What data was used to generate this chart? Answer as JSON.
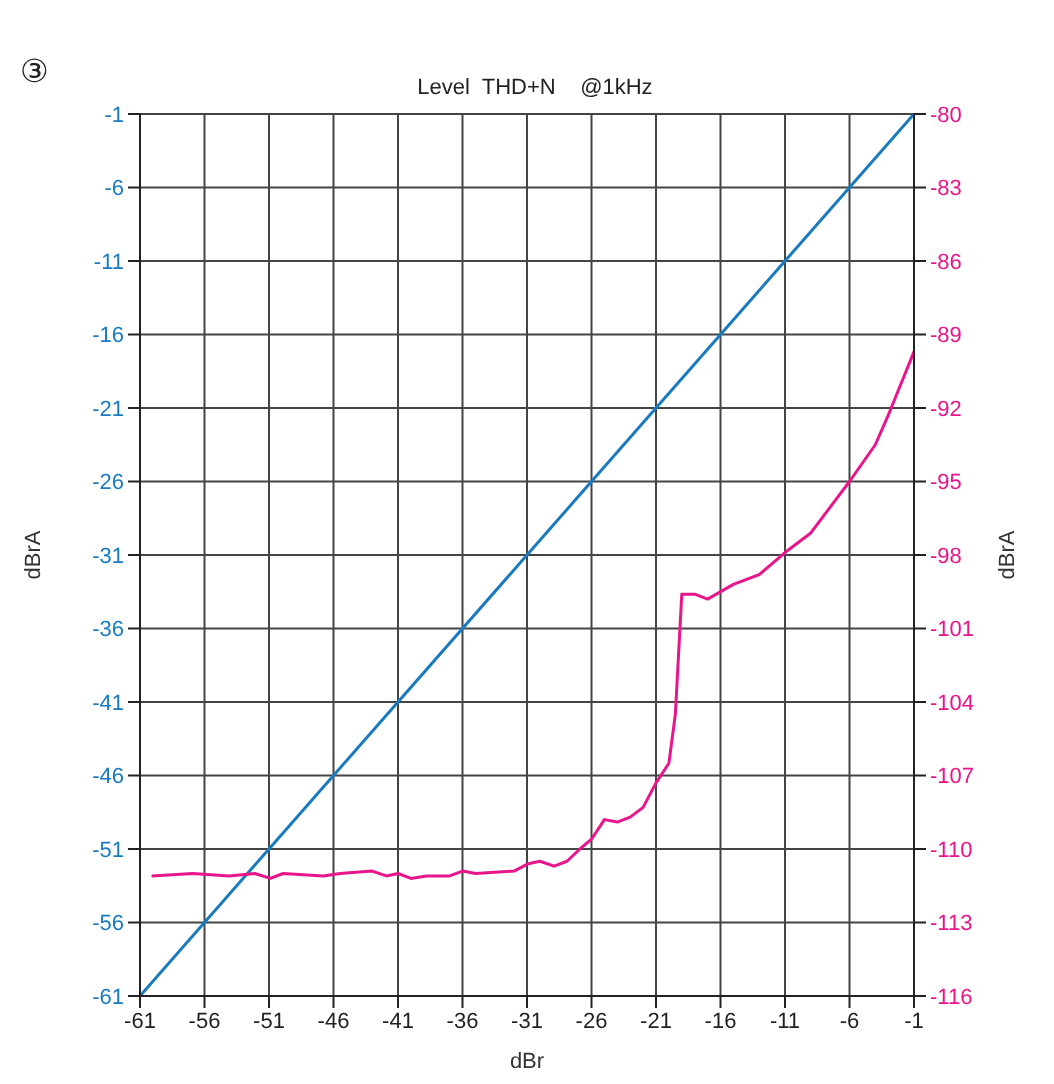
{
  "chart_data": {
    "type": "line",
    "subtitle": "Level  THD+N    @1kHz",
    "xlabel": "dBr",
    "ylabel": "dBrA",
    "y2label": "dBrA",
    "annotations": [
      "③"
    ],
    "xlim": [
      -61,
      -1
    ],
    "xticks": [
      -61,
      -56,
      -51,
      -46,
      -41,
      -36,
      -31,
      -26,
      -21,
      -16,
      -11,
      -6,
      -1
    ],
    "ylim": [
      -61,
      -1
    ],
    "yticks": [
      -61,
      -56,
      -51,
      -46,
      -41,
      -36,
      -31,
      -26,
      -21,
      -16,
      -11,
      -6,
      -1
    ],
    "y2lim": [
      -116,
      -80
    ],
    "y2ticks": [
      -116,
      -113,
      -110,
      -107,
      -104,
      -101,
      -98,
      -95,
      -92,
      -89,
      -86,
      -83,
      -80
    ],
    "grid": true,
    "series": [
      {
        "color": "#1a7abf",
        "x": [
          -61,
          -51,
          -41,
          -31,
          -21,
          -11,
          -1
        ],
        "values": [
          -61,
          -51,
          -41,
          -31,
          -21,
          -11,
          -1
        ]
      },
      {
        "color": "#e8168a",
        "axis": "y2",
        "x": [
          -60.1,
          -56.9,
          -54.1,
          -52.1,
          -50.9,
          -49.9,
          -46.8,
          -45.5,
          -43,
          -41.9,
          -41,
          -40,
          -38.8,
          -37,
          -36,
          -35,
          -32,
          -30.9,
          -30,
          -28.9,
          -27.9,
          -26.9,
          -26,
          -25,
          -24,
          -23,
          -22,
          -21,
          -20,
          -19.5,
          -19,
          -18,
          -17,
          -15,
          -13,
          -11,
          -9,
          -7,
          -6,
          -4,
          -3,
          -2,
          -1
        ],
        "values": [
          -111.1,
          -111,
          -111.1,
          -111,
          -111.2,
          -111,
          -111.1,
          -111,
          -110.9,
          -111.1,
          -111,
          -111.2,
          -111.1,
          -111.1,
          -110.9,
          -111,
          -110.9,
          -110.6,
          -110.5,
          -110.7,
          -110.5,
          -110,
          -109.6,
          -108.8,
          -108.9,
          -108.7,
          -108.3,
          -107.3,
          -106.5,
          -104.5,
          -99.6,
          -99.6,
          -99.8,
          -99.2,
          -98.8,
          -97.9,
          -97.1,
          -95.7,
          -95,
          -93.5,
          -92.3,
          -91,
          -89.7
        ]
      }
    ]
  }
}
